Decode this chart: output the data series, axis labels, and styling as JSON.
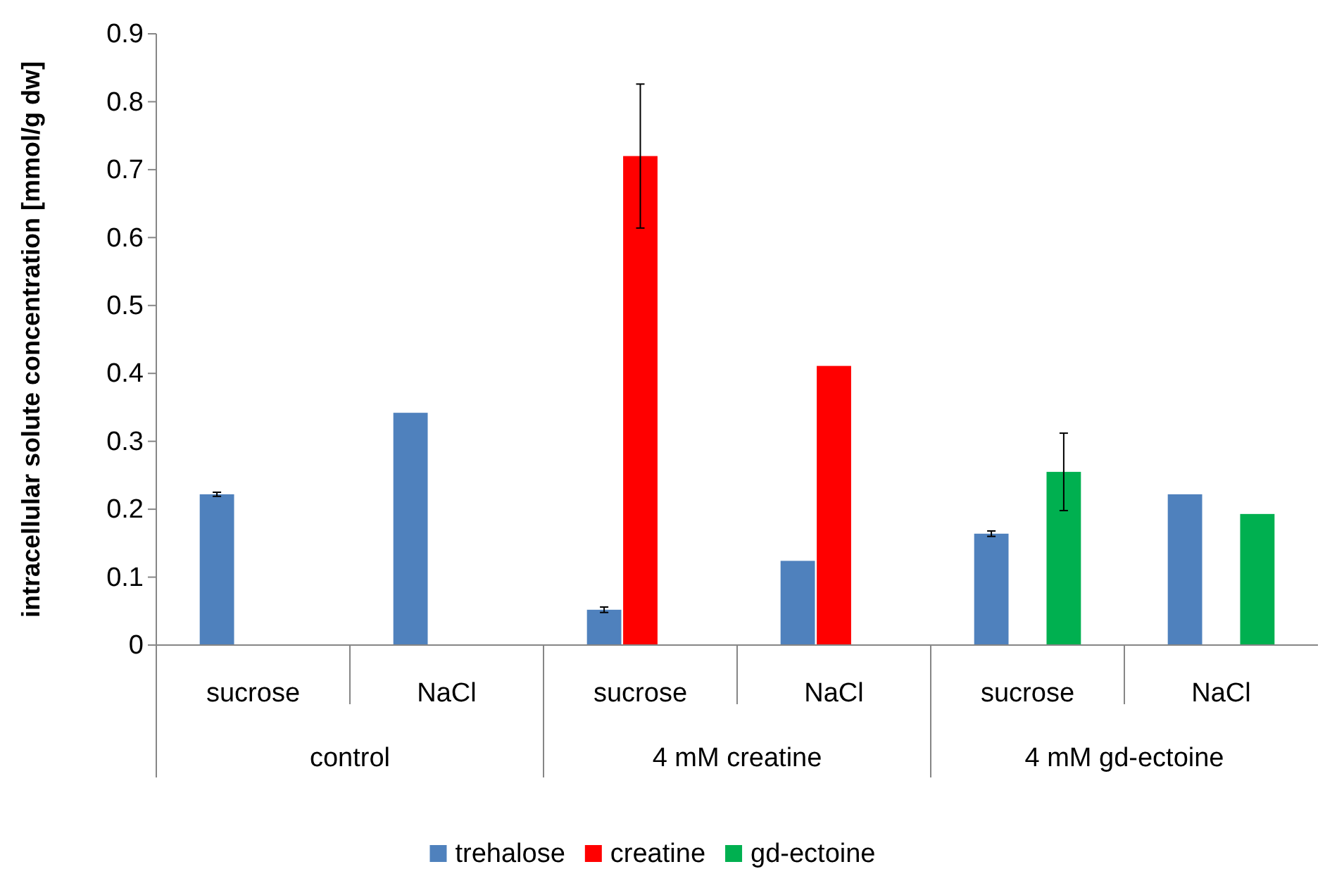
{
  "chart_data": {
    "type": "bar",
    "ylabel": "intracellular solute concentration [mmol/g dw]",
    "categories": [
      "sucrose",
      "NaCl",
      "sucrose",
      "NaCl",
      "sucrose",
      "NaCl"
    ],
    "annotations": [
      "control",
      "4 mM creatine",
      "4 mM gd-ectoine"
    ],
    "series": [
      {
        "name": "trehalose",
        "color": "#4f81bd",
        "values": [
          0.222,
          0.342,
          0.052,
          0.124,
          0.164,
          0.222
        ],
        "errors": [
          0.003,
          null,
          0.004,
          null,
          0.004,
          null
        ]
      },
      {
        "name": "creatine",
        "color": "#ff0000",
        "values": [
          null,
          null,
          0.72,
          0.411,
          null,
          null
        ],
        "errors": [
          null,
          null,
          0.106,
          null,
          null,
          null
        ]
      },
      {
        "name": "gd-ectoine",
        "color": "#00b050",
        "values": [
          null,
          null,
          null,
          null,
          0.255,
          0.193
        ],
        "errors": [
          null,
          null,
          null,
          null,
          0.057,
          null
        ]
      }
    ],
    "ylim": [
      0,
      0.9
    ],
    "yticks": [
      0,
      0.1,
      0.2,
      0.3,
      0.4,
      0.5,
      0.6,
      0.7,
      0.8,
      0.9
    ],
    "grid": false,
    "legend": "bottom"
  }
}
